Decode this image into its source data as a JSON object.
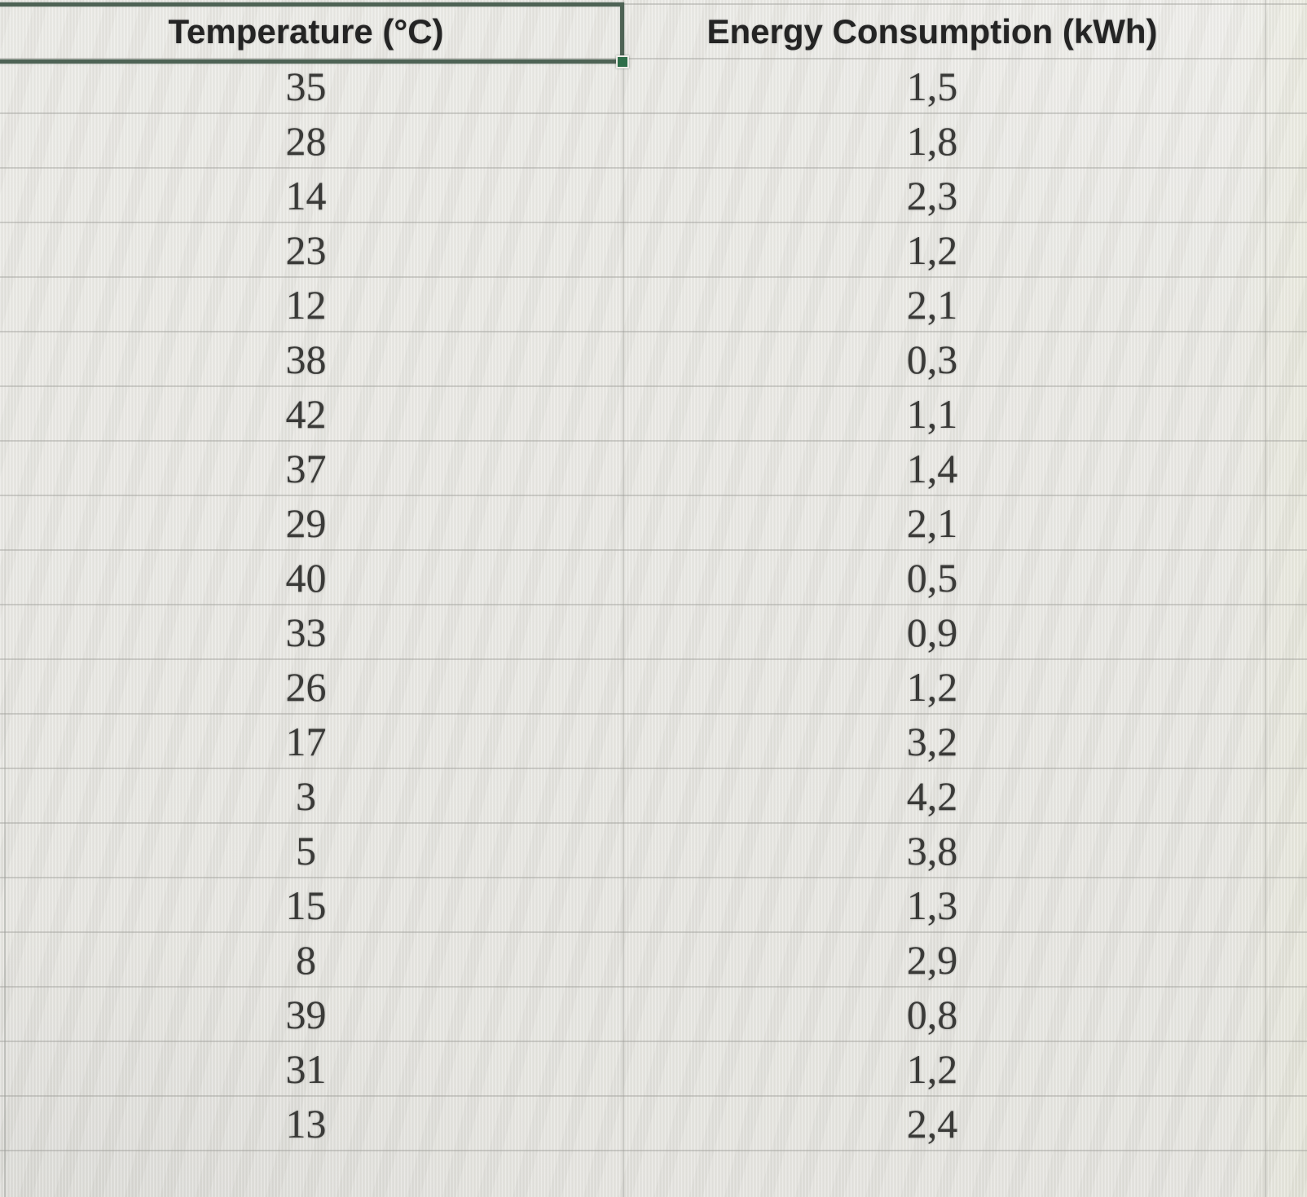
{
  "table": {
    "columns": [
      {
        "label": "Temperature (°C)"
      },
      {
        "label": "Energy Consumption (kWh)"
      }
    ],
    "rows": [
      {
        "temperature": "35",
        "energy": "1,5"
      },
      {
        "temperature": "28",
        "energy": "1,8"
      },
      {
        "temperature": "14",
        "energy": "2,3"
      },
      {
        "temperature": "23",
        "energy": "1,2"
      },
      {
        "temperature": "12",
        "energy": "2,1"
      },
      {
        "temperature": "38",
        "energy": "0,3"
      },
      {
        "temperature": "42",
        "energy": "1,1"
      },
      {
        "temperature": "37",
        "energy": "1,4"
      },
      {
        "temperature": "29",
        "energy": "2,1"
      },
      {
        "temperature": "40",
        "energy": "0,5"
      },
      {
        "temperature": "33",
        "energy": "0,9"
      },
      {
        "temperature": "26",
        "energy": "1,2"
      },
      {
        "temperature": "17",
        "energy": "3,2"
      },
      {
        "temperature": "3",
        "energy": "4,2"
      },
      {
        "temperature": "5",
        "energy": "3,8"
      },
      {
        "temperature": "15",
        "energy": "1,3"
      },
      {
        "temperature": "8",
        "energy": "2,9"
      },
      {
        "temperature": "39",
        "energy": "0,8"
      },
      {
        "temperature": "31",
        "energy": "1,2"
      },
      {
        "temperature": "13",
        "energy": "2,4"
      }
    ],
    "selected_cell": "Temperature (°C)"
  },
  "colors": {
    "background": "#e6e5e0",
    "grid_line": "#9a9c97",
    "selection_border": "#4e6355",
    "fill_handle_green": "#2e6e49",
    "data_text": "#3a3a38",
    "header_text": "#242424"
  }
}
